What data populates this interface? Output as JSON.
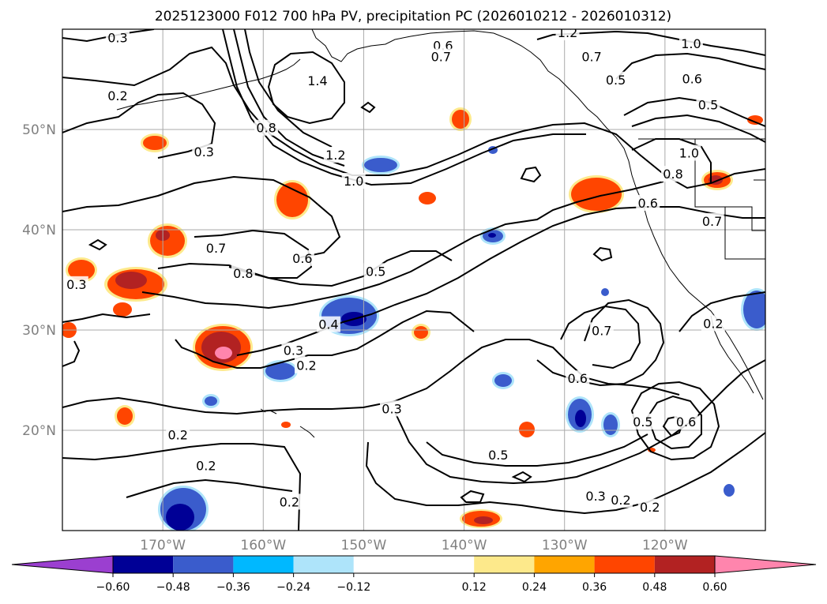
{
  "title": "2025123000 F012 700 hPa PV, precipitation PC (2026010212 - 2026010312)",
  "map": {
    "projection": "PlateCarree",
    "lon_range": [
      -180,
      -110
    ],
    "lat_range": [
      10,
      60
    ],
    "lat_ticks": [
      {
        "lat": 20,
        "label": "20°N"
      },
      {
        "lat": 30,
        "label": "30°N"
      },
      {
        "lat": 40,
        "label": "40°N"
      },
      {
        "lat": 50,
        "label": "50°N"
      }
    ],
    "lon_ticks": [
      {
        "lon": -170,
        "label": "170°W"
      },
      {
        "lon": -160,
        "label": "160°W"
      },
      {
        "lon": -150,
        "label": "150°W"
      },
      {
        "lon": -140,
        "label": "140°W"
      },
      {
        "lon": -130,
        "label": "130°W"
      },
      {
        "lon": -120,
        "label": "120°W"
      }
    ],
    "gridlines": true,
    "contour_labels": [
      {
        "text": "0.3",
        "lon": -174.5,
        "lat": 59.1
      },
      {
        "text": "0.2",
        "lon": -174.5,
        "lat": 53.3
      },
      {
        "text": "0.3",
        "lon": -165.9,
        "lat": 47.7
      },
      {
        "text": "1.4",
        "lon": -154.6,
        "lat": 54.8
      },
      {
        "text": "0.8",
        "lon": -159.7,
        "lat": 50.1
      },
      {
        "text": "1.2",
        "lon": -152.8,
        "lat": 47.4
      },
      {
        "text": "1.0",
        "lon": -151.0,
        "lat": 44.8
      },
      {
        "text": "0.6",
        "lon": -142.1,
        "lat": 58.3
      },
      {
        "text": "0.7",
        "lon": -142.3,
        "lat": 57.2
      },
      {
        "text": "1.2",
        "lon": -129.7,
        "lat": 59.6
      },
      {
        "text": "1.0",
        "lon": -117.4,
        "lat": 58.5
      },
      {
        "text": "0.7",
        "lon": -127.3,
        "lat": 57.2
      },
      {
        "text": "0.5",
        "lon": -124.9,
        "lat": 54.9
      },
      {
        "text": "0.6",
        "lon": -117.3,
        "lat": 55.0
      },
      {
        "text": "0.5",
        "lon": -115.7,
        "lat": 52.4
      },
      {
        "text": "1.0",
        "lon": -117.6,
        "lat": 47.6
      },
      {
        "text": "0.8",
        "lon": -119.2,
        "lat": 45.5
      },
      {
        "text": "0.6",
        "lon": -121.7,
        "lat": 42.6
      },
      {
        "text": "0.7",
        "lon": -115.3,
        "lat": 40.8
      },
      {
        "text": "0.7",
        "lon": -164.7,
        "lat": 38.1
      },
      {
        "text": "0.6",
        "lon": -156.1,
        "lat": 37.1
      },
      {
        "text": "0.8",
        "lon": -162.0,
        "lat": 35.6
      },
      {
        "text": "0.5",
        "lon": -148.8,
        "lat": 35.8
      },
      {
        "text": "0.4",
        "lon": -153.5,
        "lat": 30.5
      },
      {
        "text": "0.3",
        "lon": -157.0,
        "lat": 27.9
      },
      {
        "text": "0.2",
        "lon": -155.7,
        "lat": 26.4
      },
      {
        "text": "0.3",
        "lon": -178.6,
        "lat": 34.5
      },
      {
        "text": "0.7",
        "lon": -126.3,
        "lat": 29.9
      },
      {
        "text": "0.6",
        "lon": -128.7,
        "lat": 25.1
      },
      {
        "text": "0.5",
        "lon": -122.2,
        "lat": 20.8
      },
      {
        "text": "0.6",
        "lon": -117.9,
        "lat": 20.8
      },
      {
        "text": "0.3",
        "lon": -147.2,
        "lat": 22.1
      },
      {
        "text": "0.5",
        "lon": -136.6,
        "lat": 17.5
      },
      {
        "text": "0.2",
        "lon": -168.5,
        "lat": 19.5
      },
      {
        "text": "0.2",
        "lon": -165.7,
        "lat": 16.4
      },
      {
        "text": "0.2",
        "lon": -157.4,
        "lat": 12.8
      },
      {
        "text": "0.3",
        "lon": -126.9,
        "lat": 13.4
      },
      {
        "text": "0.2",
        "lon": -124.4,
        "lat": 13.0
      },
      {
        "text": "0.2",
        "lon": -121.5,
        "lat": 12.3
      },
      {
        "text": "0.2",
        "lon": -115.2,
        "lat": 30.6
      }
    ]
  },
  "colorbar": {
    "ticks": [
      "−0.60",
      "−0.48",
      "−0.36",
      "−0.24",
      "−0.12",
      "0.12",
      "0.24",
      "0.36",
      "0.48",
      "0.60"
    ],
    "levels": [
      -0.6,
      -0.48,
      -0.36,
      -0.24,
      -0.12,
      0.12,
      0.24,
      0.36,
      0.48,
      0.6
    ],
    "colors": [
      "#9b3fd0",
      "#000096",
      "#3a5ccc",
      "#00b8ff",
      "#aee4fa",
      "#ffffff",
      "#fde98b",
      "#ffa500",
      "#ff4500",
      "#b22222",
      "#ff85ad"
    ]
  }
}
